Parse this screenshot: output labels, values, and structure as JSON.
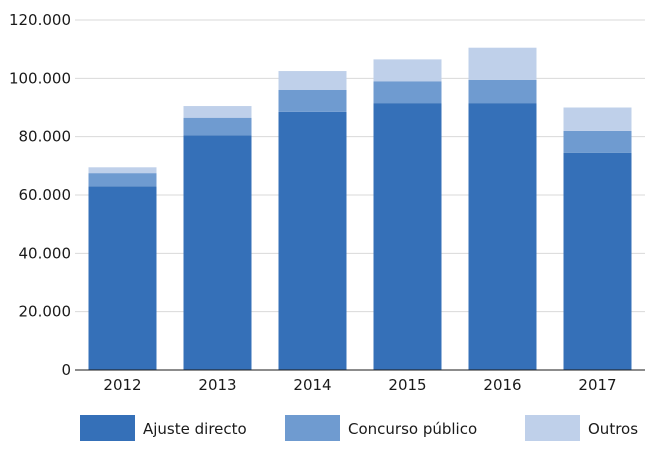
{
  "chart_data": {
    "type": "bar",
    "stacked": true,
    "categories": [
      "2012",
      "2013",
      "2014",
      "2015",
      "2016",
      "2017"
    ],
    "series": [
      {
        "name": "Ajuste directo",
        "color": "#3570b8",
        "values": [
          63000,
          80500,
          88500,
          91500,
          91500,
          74500
        ]
      },
      {
        "name": "Concurso público",
        "color": "#6f9bd0",
        "values": [
          4500,
          6000,
          7500,
          7500,
          8000,
          7500
        ]
      },
      {
        "name": "Outros",
        "color": "#bfd0ea",
        "values": [
          2000,
          4000,
          6500,
          7500,
          11000,
          8000
        ]
      }
    ],
    "ylim": [
      0,
      120000
    ],
    "yticks": [
      0,
      20000,
      40000,
      60000,
      80000,
      100000,
      120000
    ],
    "ytick_labels": [
      "0",
      "20.000",
      "40.000",
      "60.000",
      "80.000",
      "100.000",
      "120.000"
    ],
    "grid": true,
    "legend_position": "bottom",
    "title": "",
    "xlabel": "",
    "ylabel": ""
  }
}
